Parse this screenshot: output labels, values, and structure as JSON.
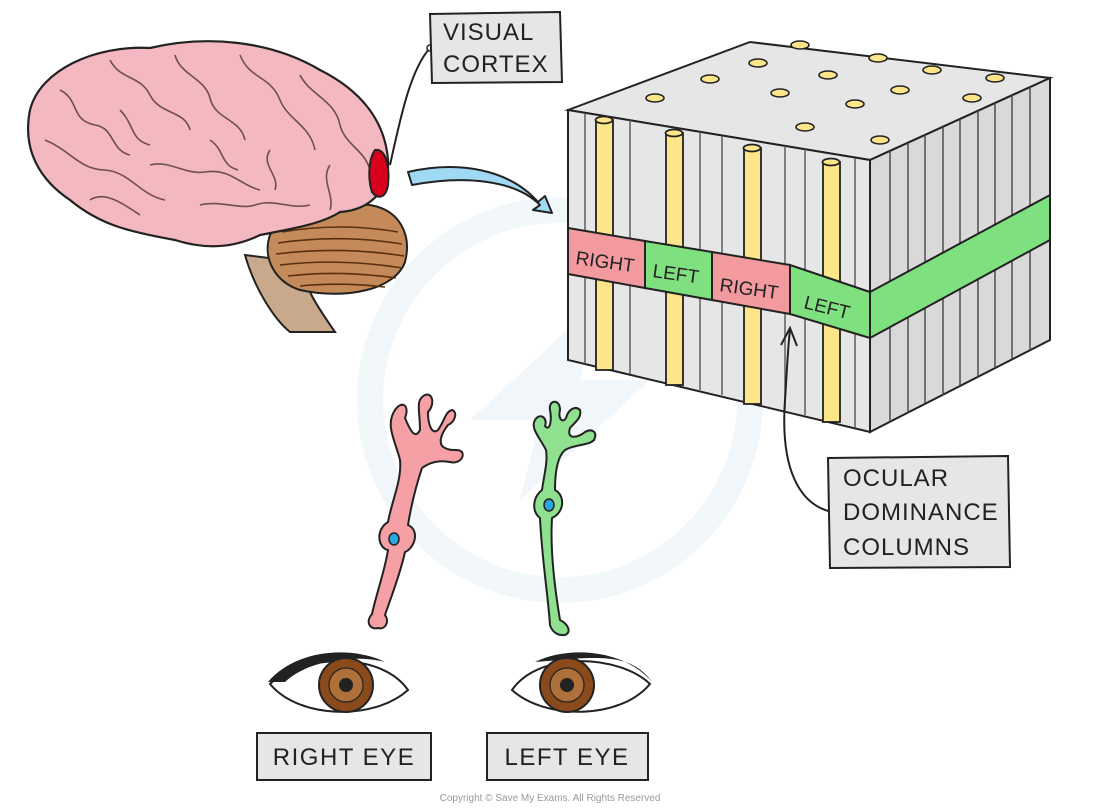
{
  "labels": {
    "visual_cortex": [
      "VISUAL",
      "CORTEX"
    ],
    "ocular_dominance": [
      "OCULAR",
      "DOMINANCE",
      "COLUMNS"
    ],
    "right_eye": "RIGHT EYE",
    "left_eye": "LEFT EYE"
  },
  "band": {
    "segments": [
      "RIGHT",
      "LEFT",
      "RIGHT",
      "LEFT"
    ]
  },
  "footer": {
    "copyright": "Copyright © Save My Exams. All Rights Reserved"
  },
  "colors": {
    "brain": "#f4b9c0",
    "brain_line": "#6e4e52",
    "cerebellum": "#c48a5a",
    "brainstem": "#c9a98b",
    "visual_cortex_spot": "#d9001b",
    "arrow": "#9fd9f4",
    "cube_face": "#e6e6e6",
    "cube_side": "#d9d9d9",
    "yellow_column": "#fde58a",
    "right_band": "#f39a9f",
    "left_band": "#7fe07f",
    "label_box": "#e6e6e6",
    "right_neuron": "#f4a0a5",
    "left_neuron": "#8fe08f",
    "nucleus": "#29a8e0",
    "iris": "#8b4a1c"
  }
}
